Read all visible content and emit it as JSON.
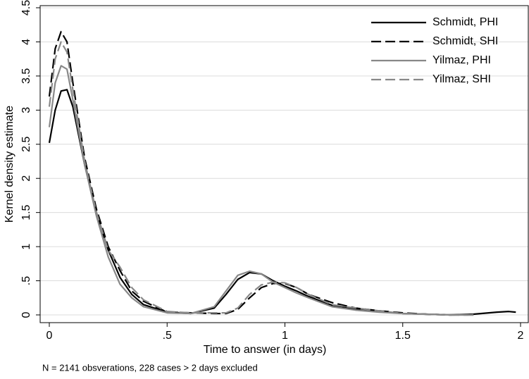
{
  "chart_data": {
    "type": "line",
    "x_label": "Time to answer (in days)",
    "y_label": "Kernel density estimate",
    "note": "N = 2141 obsverations, 228 cases > 2 days excluded",
    "xlim": [
      0,
      2
    ],
    "ylim": [
      0,
      4.5
    ],
    "xticks": [
      0,
      {
        "value": 0.5,
        "label": ".5"
      },
      1,
      1.5,
      2
    ],
    "yticks": [
      0,
      {
        "value": 0.5,
        "label": ".5"
      },
      1,
      1.5,
      2,
      2.5,
      3,
      3.5,
      4,
      4.5
    ],
    "grid": true,
    "legend": "top-right",
    "x": [
      0,
      0.025,
      0.05,
      0.075,
      0.1,
      0.15,
      0.2,
      0.25,
      0.3,
      0.35,
      0.4,
      0.5,
      0.6,
      0.7,
      0.75,
      0.8,
      0.85,
      0.9,
      0.95,
      1.0,
      1.05,
      1.1,
      1.2,
      1.3,
      1.4,
      1.5,
      1.6,
      1.7,
      1.8,
      1.9,
      1.95,
      1.98
    ],
    "series": [
      {
        "name": "Schmidt, PHI",
        "color": "#000000",
        "dashed": false,
        "values": [
          2.52,
          3.0,
          3.28,
          3.3,
          3.05,
          2.2,
          1.5,
          0.95,
          0.55,
          0.3,
          0.15,
          0.04,
          0.02,
          0.1,
          0.3,
          0.52,
          0.62,
          0.6,
          0.5,
          0.42,
          0.35,
          0.27,
          0.14,
          0.08,
          0.05,
          0.02,
          0.01,
          0.0,
          0.01,
          0.04,
          0.05,
          0.04
        ]
      },
      {
        "name": "Schmidt, SHI",
        "color": "#000000",
        "dashed": true,
        "values": [
          3.2,
          3.9,
          4.15,
          4.0,
          3.4,
          2.3,
          1.55,
          1.0,
          0.65,
          0.35,
          0.2,
          0.04,
          0.03,
          0.02,
          0.02,
          0.08,
          0.25,
          0.4,
          0.46,
          0.46,
          0.4,
          0.3,
          0.18,
          0.1,
          0.06,
          0.03,
          0.01,
          0.0,
          0.0,
          null,
          null,
          null
        ]
      },
      {
        "name": "Yilmaz, PHI",
        "color": "#888888",
        "dashed": false,
        "values": [
          2.75,
          3.4,
          3.65,
          3.6,
          3.15,
          2.2,
          1.45,
          0.85,
          0.45,
          0.25,
          0.12,
          0.03,
          0.02,
          0.12,
          0.35,
          0.58,
          0.64,
          0.6,
          0.48,
          0.4,
          0.32,
          0.25,
          0.12,
          0.07,
          0.04,
          0.02,
          0.01,
          0.0,
          0.0,
          null,
          null,
          null
        ]
      },
      {
        "name": "Yilmaz, SHI",
        "color": "#888888",
        "dashed": true,
        "values": [
          3.05,
          3.75,
          4.0,
          3.85,
          3.3,
          2.25,
          1.5,
          0.95,
          0.7,
          0.4,
          0.22,
          0.05,
          0.03,
          0.03,
          0.03,
          0.1,
          0.3,
          0.44,
          0.48,
          0.47,
          0.4,
          0.3,
          0.15,
          0.1,
          0.06,
          0.02,
          0.01,
          0.0,
          0.0,
          null,
          null,
          null
        ]
      }
    ]
  }
}
